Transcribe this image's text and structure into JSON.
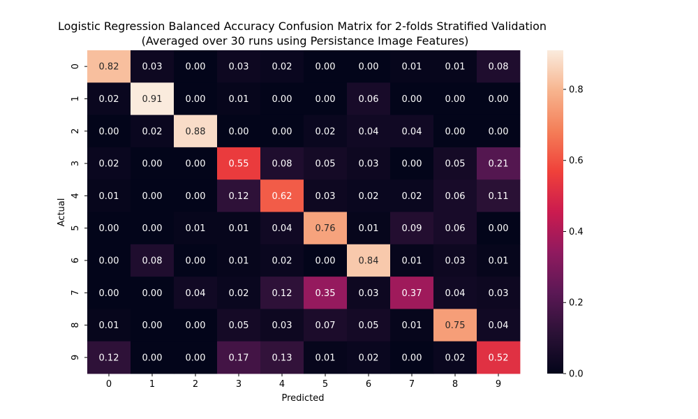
{
  "chart_data": {
    "type": "heatmap",
    "title": "Logistic Regression Balanced Accuracy Confusion Matrix for 2-folds Stratified Validation",
    "subtitle": "(Averaged over 30 runs using Persistance Image Features)",
    "xlabel": "Predicted",
    "ylabel": "Actual",
    "x_categories": [
      "0",
      "1",
      "2",
      "3",
      "4",
      "5",
      "6",
      "7",
      "8",
      "9"
    ],
    "y_categories": [
      "0",
      "1",
      "2",
      "3",
      "4",
      "5",
      "6",
      "7",
      "8",
      "9"
    ],
    "values": [
      [
        0.82,
        0.03,
        0.0,
        0.03,
        0.02,
        0.0,
        0.0,
        0.01,
        0.01,
        0.08
      ],
      [
        0.02,
        0.91,
        0.0,
        0.01,
        0.0,
        0.0,
        0.06,
        0.0,
        0.0,
        0.0
      ],
      [
        0.0,
        0.02,
        0.88,
        0.0,
        0.0,
        0.02,
        0.04,
        0.04,
        0.0,
        0.0
      ],
      [
        0.02,
        0.0,
        0.0,
        0.55,
        0.08,
        0.05,
        0.03,
        0.0,
        0.05,
        0.21
      ],
      [
        0.01,
        0.0,
        0.0,
        0.12,
        0.62,
        0.03,
        0.02,
        0.02,
        0.06,
        0.11
      ],
      [
        0.0,
        0.0,
        0.01,
        0.01,
        0.04,
        0.76,
        0.01,
        0.09,
        0.06,
        0.0
      ],
      [
        0.0,
        0.08,
        0.0,
        0.01,
        0.02,
        0.0,
        0.84,
        0.01,
        0.03,
        0.01
      ],
      [
        0.0,
        0.0,
        0.04,
        0.02,
        0.12,
        0.35,
        0.03,
        0.37,
        0.04,
        0.03
      ],
      [
        0.01,
        0.0,
        0.0,
        0.05,
        0.03,
        0.07,
        0.05,
        0.01,
        0.75,
        0.04
      ],
      [
        0.12,
        0.0,
        0.0,
        0.17,
        0.13,
        0.01,
        0.02,
        0.0,
        0.02,
        0.52
      ]
    ],
    "value_range": [
      0,
      0.91
    ],
    "colormap": "rocket",
    "colorbar": {
      "ticks": [
        0.0,
        0.2,
        0.4,
        0.6,
        0.8
      ],
      "tick_labels": [
        "0.0",
        "0.2",
        "0.4",
        "0.6",
        "0.8"
      ],
      "placement": "right"
    }
  }
}
